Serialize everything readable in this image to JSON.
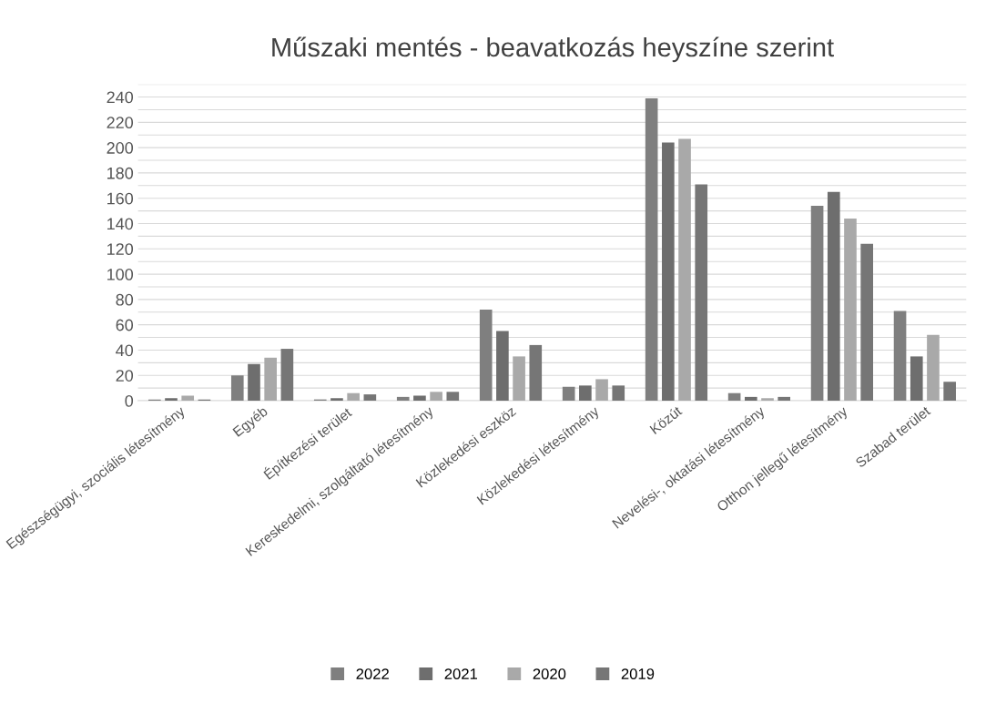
{
  "chart_data": {
    "type": "bar",
    "title": "Műszaki mentés - beavatkozás heyszíne szerint",
    "categories": [
      "Egészségügyi, szociális létesítmény",
      "Egyéb",
      "Építkezési terület",
      "Kereskedelmi, szolgáltató létesítmény",
      "Közlekedési eszköz",
      "Közlekedési létesítmény",
      "Közút",
      "Nevelési-, oktatási létesítmény",
      "Otthon jellegű létesítmény",
      "Szabad terület"
    ],
    "series": [
      {
        "name": "2022",
        "color": "#7f7f7f",
        "values": [
          1,
          20,
          1,
          3,
          72,
          11,
          239,
          6,
          154,
          71
        ]
      },
      {
        "name": "2021",
        "color": "#6e6e6e",
        "values": [
          2,
          29,
          2,
          4,
          55,
          12,
          204,
          3,
          165,
          35
        ]
      },
      {
        "name": "2020",
        "color": "#a9a9a9",
        "values": [
          4,
          34,
          6,
          7,
          35,
          17,
          207,
          2,
          144,
          52
        ]
      },
      {
        "name": "2019",
        "color": "#767676",
        "values": [
          1,
          41,
          5,
          7,
          44,
          12,
          171,
          3,
          124,
          15
        ]
      }
    ],
    "ylim": [
      0,
      250
    ],
    "yticks": [
      0,
      {
        "value": 10,
        "label": null
      },
      20,
      {
        "value": 30,
        "label": null
      },
      40,
      {
        "value": 50,
        "label": null
      },
      60,
      {
        "value": 70,
        "label": null
      },
      80,
      {
        "value": 90,
        "label": null
      },
      100,
      {
        "value": 110,
        "label": null
      },
      120,
      {
        "value": 130,
        "label": null
      },
      140,
      {
        "value": 150,
        "label": null
      },
      160,
      {
        "value": 170,
        "label": null
      },
      180,
      {
        "value": 190,
        "label": null
      },
      200,
      {
        "value": 210,
        "label": null
      },
      220,
      {
        "value": 230,
        "label": null
      },
      240,
      {
        "value": 250,
        "label": null
      }
    ],
    "grid": "y",
    "legend": "bottom"
  }
}
